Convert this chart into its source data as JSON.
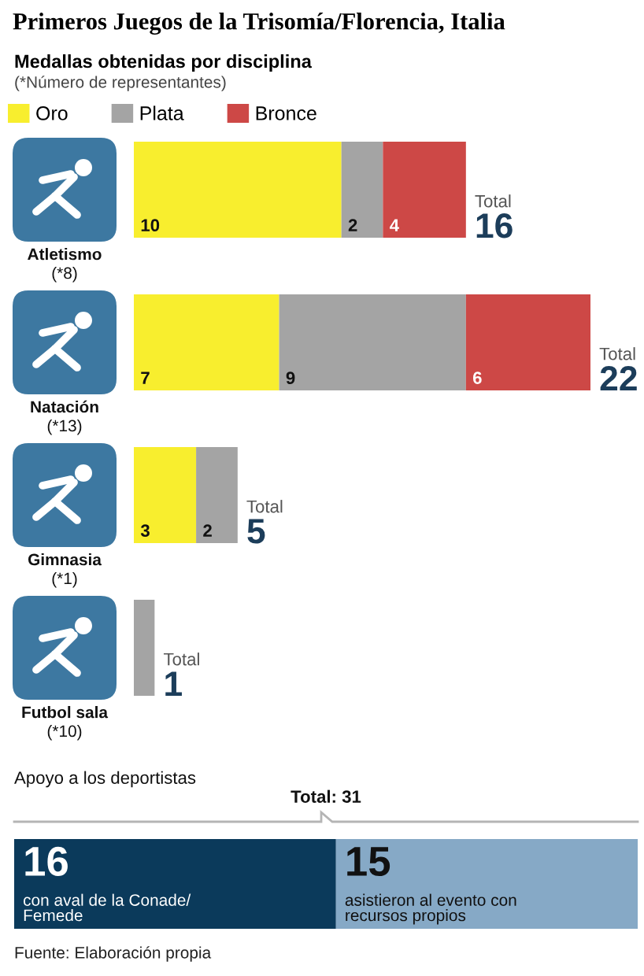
{
  "chart_data": [
    {
      "type": "bar",
      "orientation": "horizontal",
      "stacked": true,
      "title": "Primeros Juegos de la Trisomía/Florencia, Italia",
      "subtitle": "Medallas obtenidas por disciplina",
      "annotations": [
        "(*Número de representantes)"
      ],
      "categories": [
        "Atletismo\n(*8)",
        "Natación\n(*13)",
        "Gimnasia\n(*1)",
        "Futbol sala\n(*10)"
      ],
      "series": [
        {
          "name": "Oro",
          "color": "#f8ee2e",
          "values": [
            10,
            7,
            3,
            0
          ],
          "value_labels": [
            "10",
            "7",
            "3",
            null
          ]
        },
        {
          "name": "Plata",
          "color": "#a4a4a4",
          "values": [
            2,
            9,
            2,
            1
          ],
          "value_labels": [
            "2",
            "9",
            "2",
            null
          ]
        },
        {
          "name": "Bronce",
          "color": "#cd4846",
          "values": [
            4,
            6,
            0,
            0
          ],
          "value_labels": [
            "4",
            "6",
            null,
            null
          ]
        }
      ],
      "totals": [
        "Total\n16",
        "Total\n22",
        "Total\n5",
        "Total\n1"
      ],
      "legend": "top left"
    },
    {
      "type": "bar",
      "orientation": "horizontal",
      "stacked": true,
      "title": "Apoyo a los deportistas",
      "categories": [
        null
      ],
      "series": [
        {
          "name": "con aval de la Conade/\nFemede",
          "color": "#0b3a5b",
          "values": [
            16
          ]
        },
        {
          "name": "asistieron al evento con\nrecursos propios",
          "color": "#86a9c6",
          "values": [
            15
          ]
        }
      ],
      "data_labels": true,
      "totals": [
        "Total: 31"
      ],
      "annotations": [
        "Fuente: Elaboración propia"
      ]
    }
  ]
}
